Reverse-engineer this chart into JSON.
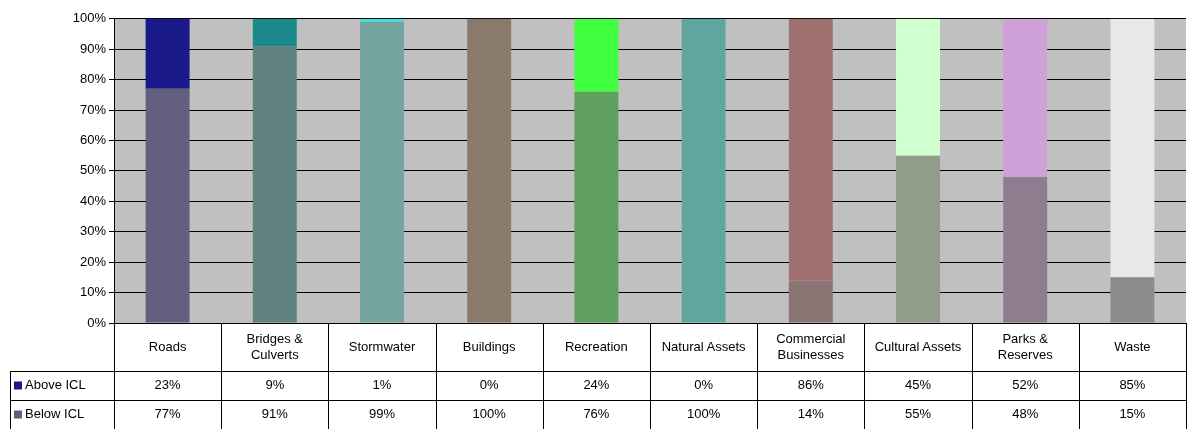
{
  "chart_data": {
    "type": "bar",
    "stacked": true,
    "categories": [
      "Roads",
      "Bridges & Culverts",
      "Stormwater",
      "Buildings",
      "Recreation",
      "Natural Assets",
      "Commercial Businesses",
      "Cultural Assets",
      "Parks & Reserves",
      "Waste"
    ],
    "series": [
      {
        "name": "Below ICL",
        "color": "#63607f",
        "colors": [
          "#63607f",
          "#5f827e",
          "#76a4a0",
          "#8a7a6b",
          "#5fa05f",
          "#5fa5a0",
          "#8a7575",
          "#8f9d8a",
          "#8f7d8f",
          "#8c8c8c"
        ],
        "values": [
          77,
          91,
          99,
          100,
          76,
          100,
          14,
          55,
          48,
          15
        ],
        "value_labels": [
          "77%",
          "91%",
          "99%",
          "100%",
          "76%",
          "100%",
          "14%",
          "55%",
          "48%",
          "15%"
        ]
      },
      {
        "name": "Above ICL",
        "color": "#1a1a8a",
        "colors": [
          "#1a1a8a",
          "#1a8a8a",
          "#40e0e0",
          "#8a7a6b",
          "#40ff40",
          "#5fa5a0",
          "#a07070",
          "#d0ffd0",
          "#d0a0d8",
          "#e8e8e8"
        ],
        "values": [
          23,
          9,
          1,
          0,
          24,
          0,
          86,
          45,
          52,
          85
        ],
        "value_labels": [
          "23%",
          "9%",
          "1%",
          "0%",
          "24%",
          "0%",
          "86%",
          "45%",
          "52%",
          "85%"
        ]
      }
    ],
    "ylim": [
      0,
      100
    ],
    "yticks": [
      {
        "value": 0,
        "label": "0%"
      },
      {
        "value": 10,
        "label": "10%"
      },
      {
        "value": 20,
        "label": "20%"
      },
      {
        "value": 30,
        "label": "30%"
      },
      {
        "value": 40,
        "label": "40%"
      },
      {
        "value": 50,
        "label": "50%"
      },
      {
        "value": 60,
        "label": "60%"
      },
      {
        "value": 70,
        "label": "70%"
      },
      {
        "value": 80,
        "label": "80%"
      },
      {
        "value": 90,
        "label": "90%"
      },
      {
        "value": 100,
        "label": "100%"
      }
    ],
    "grid": "y",
    "legend": "bottom"
  }
}
